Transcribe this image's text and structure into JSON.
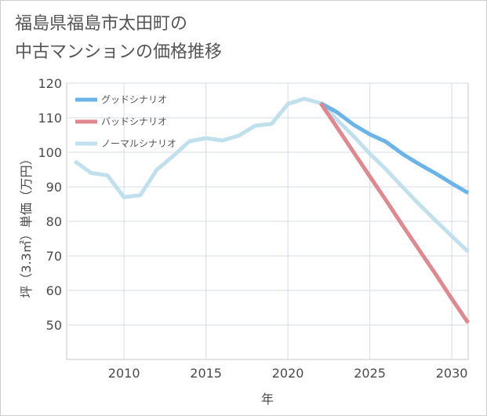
{
  "title_lines": [
    "福島県福島市太田町の",
    "中古マンションの価格推移"
  ],
  "chart_data": {
    "type": "line",
    "xlabel": "年",
    "ylabel": "坪（3.3㎡）単価（万円）",
    "xlim": [
      2006.5,
      2031
    ],
    "ylim": [
      40,
      120
    ],
    "x_ticks": [
      2010,
      2015,
      2020,
      2025,
      2030
    ],
    "y_ticks": [
      50,
      60,
      70,
      80,
      90,
      100,
      110,
      120
    ],
    "grid": true,
    "legend_position": "top-left",
    "series": [
      {
        "name": "グッドシナリオ",
        "color": "#6ab4ea",
        "x": [
          2022,
          2023,
          2024,
          2025,
          2026,
          2027,
          2028,
          2029,
          2030,
          2031
        ],
        "y": [
          114.2,
          111.6,
          108.0,
          105.2,
          103.0,
          99.5,
          96.6,
          93.9,
          91.0,
          88.2
        ]
      },
      {
        "name": "バッドシナリオ",
        "color": "#e0888f",
        "x": [
          2022,
          2023,
          2024,
          2025,
          2026,
          2027,
          2028,
          2029,
          2030,
          2031
        ],
        "y": [
          114.2,
          107.2,
          100.1,
          93.0,
          86.0,
          78.8,
          71.8,
          64.8,
          57.6,
          50.6
        ]
      },
      {
        "name": "ノーマルシナリオ",
        "color": "#bfe0ec",
        "x": [
          2007,
          2008,
          2009,
          2010,
          2011,
          2012,
          2013,
          2014,
          2015,
          2016,
          2017,
          2018,
          2019,
          2020,
          2021,
          2022,
          2023,
          2024,
          2025,
          2026,
          2027,
          2028,
          2029,
          2030,
          2031
        ],
        "y": [
          97.4,
          94.0,
          93.3,
          87.0,
          87.6,
          94.9,
          98.9,
          103.2,
          104.1,
          103.4,
          104.8,
          107.7,
          108.2,
          114.0,
          115.5,
          114.2,
          109.4,
          104.7,
          99.6,
          95.0,
          89.9,
          85.0,
          80.3,
          75.7,
          71.2
        ]
      }
    ]
  }
}
